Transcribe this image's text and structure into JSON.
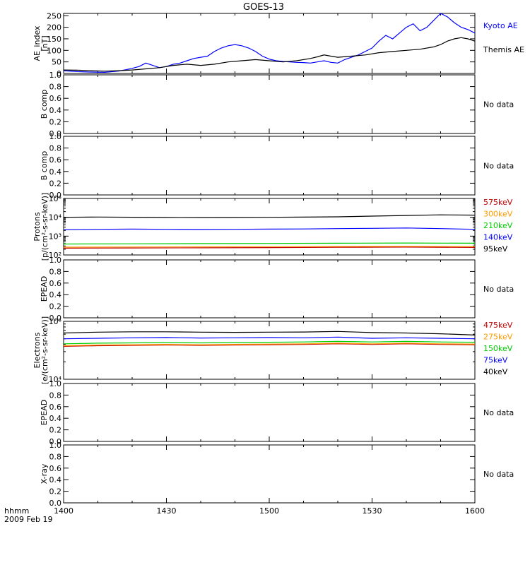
{
  "title": "GOES-13",
  "x_footer": {
    "unit_label": "hhmm",
    "date_label": "2009 Feb 19"
  },
  "colors": {
    "kyoto": "#0000ff",
    "themis": "#000000",
    "p575": "#c00000",
    "p300": "#ff9900",
    "p210": "#00cc00",
    "p140": "#0000ff",
    "p95": "#000000"
  },
  "chart_data": [
    {
      "type": "line",
      "id": "ae",
      "ylabel": [
        "AE_index",
        "[nT]"
      ],
      "x_ticks": [
        "1400",
        "1430",
        "1500",
        "1530",
        "1600"
      ],
      "xlim": [
        0,
        120
      ],
      "ylim": [
        0,
        260
      ],
      "yticks": [
        "0",
        "50",
        "100",
        "150",
        "200",
        "250"
      ],
      "series": [
        {
          "name": "Kyoto AE",
          "color": "#0000ff",
          "x": [
            0,
            4,
            8,
            12,
            16,
            18,
            20,
            22,
            24,
            26,
            28,
            30,
            32,
            34,
            36,
            38,
            40,
            42,
            44,
            46,
            48,
            50,
            52,
            54,
            56,
            58,
            60,
            62,
            64,
            66,
            68,
            70,
            72,
            74,
            76,
            78,
            80,
            82,
            84,
            86,
            88,
            90,
            92,
            94,
            96,
            98,
            100,
            102,
            104,
            106,
            108,
            110,
            112,
            114,
            116,
            118,
            120
          ],
          "y": [
            12,
            8,
            6,
            5,
            10,
            16,
            22,
            30,
            45,
            35,
            25,
            30,
            40,
            45,
            55,
            65,
            70,
            75,
            95,
            110,
            120,
            125,
            120,
            110,
            95,
            75,
            62,
            55,
            52,
            50,
            48,
            47,
            45,
            50,
            55,
            48,
            45,
            60,
            70,
            80,
            95,
            110,
            140,
            165,
            150,
            175,
            200,
            215,
            185,
            200,
            230,
            260,
            245,
            220,
            200,
            190,
            175
          ]
        },
        {
          "name": "Themis AE",
          "color": "#000000",
          "x": [
            0,
            4,
            8,
            12,
            16,
            20,
            24,
            28,
            32,
            36,
            40,
            44,
            48,
            52,
            56,
            60,
            64,
            68,
            72,
            74,
            76,
            78,
            80,
            84,
            88,
            92,
            96,
            100,
            104,
            108,
            110,
            112,
            114,
            116,
            118,
            120
          ],
          "y": [
            15,
            14,
            12,
            10,
            12,
            15,
            20,
            25,
            35,
            40,
            35,
            40,
            50,
            55,
            60,
            55,
            50,
            55,
            65,
            72,
            80,
            75,
            70,
            75,
            80,
            90,
            95,
            100,
            105,
            115,
            125,
            140,
            150,
            155,
            150,
            140
          ]
        }
      ]
    },
    {
      "type": "line",
      "id": "bcomp1",
      "ylabel": [
        "B comp"
      ],
      "yticks": [
        "0.0",
        "0.2",
        "0.4",
        "0.6",
        "0.8",
        "1.0"
      ],
      "ylim": [
        0,
        1
      ],
      "side_text": "No data"
    },
    {
      "type": "line",
      "id": "bcomp2",
      "ylabel": [
        "B comp"
      ],
      "yticks": [
        "0.0",
        "0.2",
        "0.4",
        "0.6",
        "0.8",
        "1.0"
      ],
      "ylim": [
        0,
        1
      ],
      "side_text": "No data"
    },
    {
      "type": "line",
      "id": "protons",
      "ylabel": [
        "Protons",
        "[p/(cm²-s-sr-keV)]"
      ],
      "log": true,
      "ylim": [
        100,
        100000
      ],
      "yticks": [
        "10²",
        "10³",
        "10⁴",
        "10⁵"
      ],
      "series": [
        {
          "name": "575keV",
          "color": "#c00000",
          "x": [
            0,
            20,
            40,
            60,
            80,
            100,
            120
          ],
          "y": [
            230,
            235,
            240,
            245,
            255,
            260,
            250
          ]
        },
        {
          "name": "300keV",
          "color": "#ff9900",
          "x": [
            0,
            20,
            40,
            60,
            80,
            100,
            120
          ],
          "y": [
            260,
            265,
            270,
            275,
            285,
            290,
            280
          ]
        },
        {
          "name": "210keV",
          "color": "#00cc00",
          "x": [
            0,
            20,
            40,
            60,
            80,
            100,
            120
          ],
          "y": [
            380,
            390,
            400,
            410,
            420,
            430,
            420
          ]
        },
        {
          "name": "140keV",
          "color": "#0000ff",
          "x": [
            0,
            10,
            20,
            30,
            40,
            50,
            60,
            70,
            80,
            90,
            100,
            110,
            120
          ],
          "y": [
            2200,
            2300,
            2350,
            2300,
            2250,
            2300,
            2350,
            2400,
            2500,
            2600,
            2700,
            2500,
            2300
          ]
        },
        {
          "name": "95keV",
          "color": "#000000",
          "x": [
            0,
            10,
            20,
            30,
            40,
            50,
            60,
            70,
            80,
            90,
            100,
            110,
            120
          ],
          "y": [
            10000,
            10300,
            10100,
            9800,
            9700,
            9800,
            10000,
            10200,
            10600,
            11500,
            12500,
            13500,
            13000
          ]
        }
      ]
    },
    {
      "type": "line",
      "id": "epead1",
      "ylabel": [
        "EPEAD"
      ],
      "yticks": [
        "0.0",
        "0.2",
        "0.4",
        "0.6",
        "0.8",
        "1.0"
      ],
      "ylim": [
        0,
        1
      ],
      "side_text": "No data"
    },
    {
      "type": "line",
      "id": "electrons",
      "ylabel": [
        "Electrons",
        "[e/(cm²-s-sr-keV)]"
      ],
      "log": true,
      "ylim": [
        10000,
        100000
      ],
      "yticks": [
        "10⁴",
        "10⁵"
      ],
      "series": [
        {
          "name": "475keV",
          "color": "#c00000",
          "x": [
            0,
            10,
            20,
            30,
            40,
            50,
            60,
            70,
            80,
            90,
            100,
            110,
            120
          ],
          "y": [
            37000,
            38000,
            38500,
            39000,
            38500,
            39000,
            39500,
            40000,
            41000,
            40000,
            41000,
            40000,
            39500
          ]
        },
        {
          "name": "275keV",
          "color": "#ff9900",
          "x": [
            0,
            10,
            20,
            30,
            40,
            50,
            60,
            70,
            80,
            90,
            100,
            110,
            120
          ],
          "y": [
            38000,
            39000,
            39500,
            40000,
            39500,
            40000,
            40500,
            41000,
            42000,
            41000,
            42000,
            41000,
            40500
          ]
        },
        {
          "name": "150keV",
          "color": "#00cc00",
          "x": [
            0,
            10,
            20,
            30,
            40,
            50,
            60,
            70,
            80,
            90,
            100,
            110,
            120
          ],
          "y": [
            41000,
            42000,
            42500,
            43000,
            42500,
            43000,
            43500,
            44000,
            45000,
            44000,
            45000,
            44000,
            43500
          ]
        },
        {
          "name": "75keV",
          "color": "#0000ff",
          "x": [
            0,
            10,
            20,
            30,
            40,
            50,
            60,
            70,
            80,
            90,
            100,
            110,
            120
          ],
          "y": [
            50000,
            51000,
            52000,
            52500,
            51500,
            52000,
            52500,
            52000,
            53500,
            51000,
            52000,
            51000,
            50000
          ]
        },
        {
          "name": "40keV",
          "color": "#000000",
          "x": [
            0,
            10,
            20,
            30,
            40,
            50,
            60,
            70,
            80,
            90,
            100,
            110,
            120
          ],
          "y": [
            63000,
            65000,
            66000,
            66000,
            65000,
            64500,
            65000,
            65500,
            67000,
            64000,
            63000,
            61000,
            58000
          ]
        }
      ]
    },
    {
      "type": "line",
      "id": "epead2",
      "ylabel": [
        "EPEAD"
      ],
      "yticks": [
        "0.0",
        "0.2",
        "0.4",
        "0.6",
        "0.8",
        "1.0"
      ],
      "ylim": [
        0,
        1
      ],
      "side_text": "No data"
    },
    {
      "type": "line",
      "id": "xray",
      "ylabel": [
        "X-ray"
      ],
      "yticks": [
        "0.0",
        "0.2",
        "0.4",
        "0.6",
        "0.8",
        "1.0"
      ],
      "ylim": [
        0,
        1
      ],
      "side_text": "No data"
    }
  ]
}
